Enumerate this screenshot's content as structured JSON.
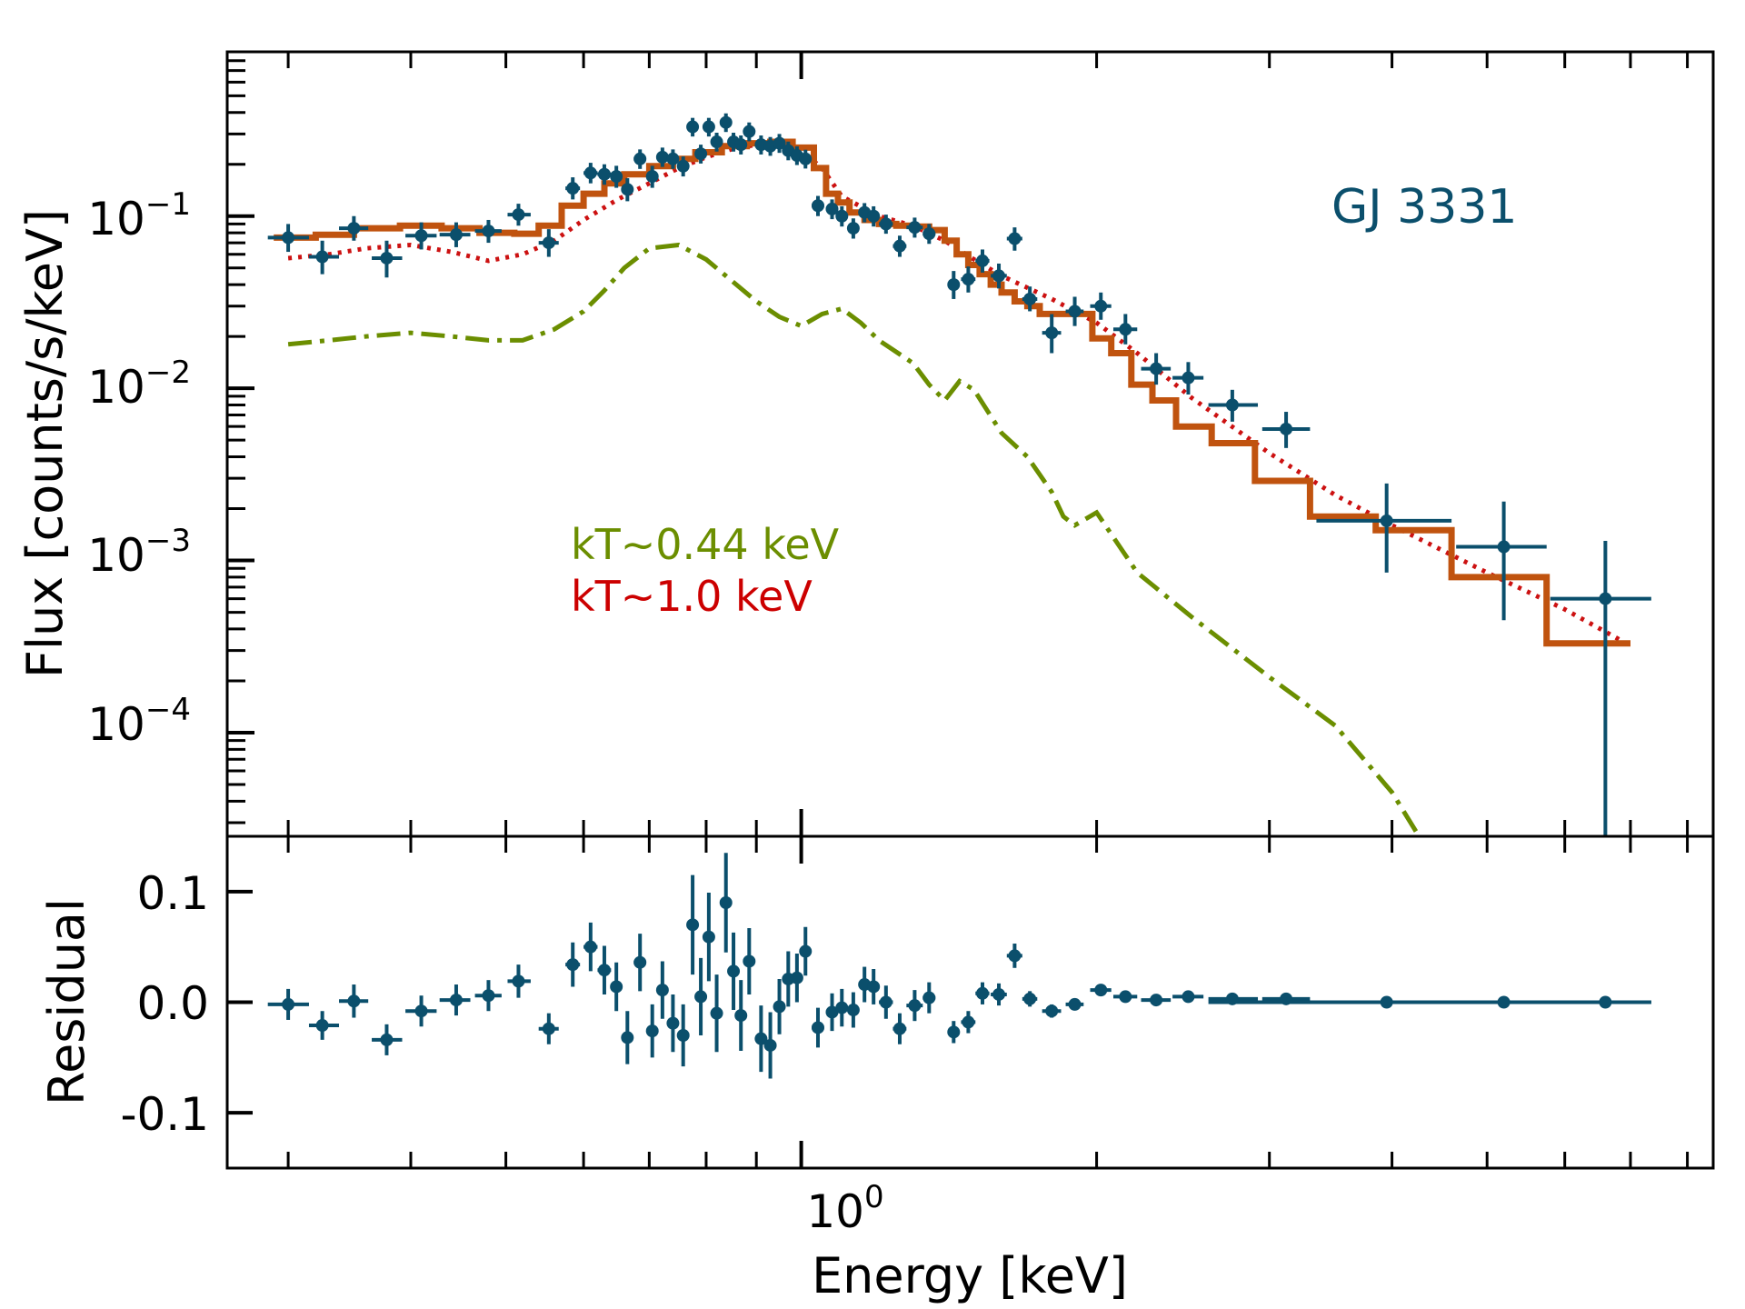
{
  "chart_data": {
    "type": "scatter",
    "panels": {
      "top": {
        "ylabel": "Flux [counts/s/keV]",
        "yscale": "log",
        "ylim": [
          2.5e-05,
          0.9
        ],
        "yticks": [
          {
            "v": 0.1,
            "base": "10",
            "exp": "−1"
          },
          {
            "v": 0.01,
            "base": "10",
            "exp": "−2"
          },
          {
            "v": 0.001,
            "base": "10",
            "exp": "−3"
          },
          {
            "v": 0.0001,
            "base": "10",
            "exp": "−4"
          }
        ]
      },
      "bottom": {
        "ylabel": "Residual",
        "ylim": [
          -0.15,
          0.15
        ],
        "yticks": [
          {
            "v": 0.1,
            "label": "0.1"
          },
          {
            "v": 0.0,
            "label": "0.0"
          },
          {
            "v": -0.1,
            "label": "-0.1"
          }
        ]
      }
    },
    "xlabel": "Energy [keV]",
    "xscale": "log",
    "xlim": [
      0.26,
      8.5
    ],
    "xtick_major": {
      "v": 1.0,
      "base": "10",
      "exp": "0"
    },
    "xtick_minor": [
      0.3,
      0.4,
      0.5,
      0.6,
      0.7,
      0.8,
      0.9,
      2,
      3,
      4,
      5,
      6,
      7,
      8
    ],
    "target_label": "GJ 3331",
    "component_labels": [
      {
        "text": "kT~0.44 keV",
        "color": "#6b8e00"
      },
      {
        "text": "kT~1.0 keV",
        "color": "#cc0000"
      }
    ],
    "colors": {
      "data": "#0b4f6c",
      "total_model": "#c0530f",
      "hot_component": "#cc1111",
      "cool_component": "#6b8e00",
      "axes": "#000000"
    },
    "data_points": [
      {
        "x": 0.3,
        "xlo": 0.286,
        "xhi": 0.315,
        "y": 0.075,
        "ylo": 0.062,
        "yhi": 0.09,
        "r": -0.002,
        "rerr": 0.014
      },
      {
        "x": 0.325,
        "xlo": 0.315,
        "xhi": 0.338,
        "y": 0.058,
        "ylo": 0.046,
        "yhi": 0.072,
        "r": -0.021,
        "rerr": 0.013
      },
      {
        "x": 0.35,
        "xlo": 0.338,
        "xhi": 0.362,
        "y": 0.085,
        "ylo": 0.072,
        "yhi": 0.1,
        "r": 0.001,
        "rerr": 0.015
      },
      {
        "x": 0.378,
        "xlo": 0.365,
        "xhi": 0.392,
        "y": 0.057,
        "ylo": 0.044,
        "yhi": 0.072,
        "r": -0.034,
        "rerr": 0.014
      },
      {
        "x": 0.41,
        "xlo": 0.395,
        "xhi": 0.425,
        "y": 0.077,
        "ylo": 0.064,
        "yhi": 0.092,
        "r": -0.008,
        "rerr": 0.014
      },
      {
        "x": 0.445,
        "xlo": 0.428,
        "xhi": 0.46,
        "y": 0.078,
        "ylo": 0.066,
        "yhi": 0.092,
        "r": 0.002,
        "rerr": 0.014
      },
      {
        "x": 0.48,
        "xlo": 0.465,
        "xhi": 0.495,
        "y": 0.082,
        "ylo": 0.07,
        "yhi": 0.095,
        "r": 0.006,
        "rerr": 0.014
      },
      {
        "x": 0.515,
        "xlo": 0.502,
        "xhi": 0.53,
        "y": 0.102,
        "ylo": 0.088,
        "yhi": 0.118,
        "r": 0.019,
        "rerr": 0.015
      },
      {
        "x": 0.553,
        "xlo": 0.54,
        "xhi": 0.566,
        "y": 0.07,
        "ylo": 0.058,
        "yhi": 0.084,
        "r": -0.024,
        "rerr": 0.014
      },
      {
        "x": 0.585,
        "xlo": 0.575,
        "xhi": 0.595,
        "y": 0.145,
        "ylo": 0.125,
        "yhi": 0.168,
        "r": 0.034,
        "rerr": 0.02
      },
      {
        "x": 0.61,
        "xlo": 0.6,
        "xhi": 0.62,
        "y": 0.178,
        "ylo": 0.155,
        "yhi": 0.204,
        "r": 0.05,
        "rerr": 0.022
      },
      {
        "x": 0.63,
        "xlo": 0.62,
        "xhi": 0.64,
        "y": 0.175,
        "ylo": 0.152,
        "yhi": 0.2,
        "r": 0.029,
        "rerr": 0.022
      },
      {
        "x": 0.648,
        "xlo": 0.64,
        "xhi": 0.656,
        "y": 0.17,
        "ylo": 0.146,
        "yhi": 0.196,
        "r": 0.014,
        "rerr": 0.022
      },
      {
        "x": 0.665,
        "xlo": 0.656,
        "xhi": 0.674,
        "y": 0.143,
        "ylo": 0.122,
        "yhi": 0.166,
        "r": -0.032,
        "rerr": 0.024
      },
      {
        "x": 0.685,
        "xlo": 0.675,
        "xhi": 0.695,
        "y": 0.215,
        "ylo": 0.188,
        "yhi": 0.244,
        "r": 0.036,
        "rerr": 0.026
      },
      {
        "x": 0.705,
        "xlo": 0.695,
        "xhi": 0.715,
        "y": 0.17,
        "ylo": 0.146,
        "yhi": 0.196,
        "r": -0.026,
        "rerr": 0.024
      },
      {
        "x": 0.722,
        "xlo": 0.714,
        "xhi": 0.73,
        "y": 0.22,
        "ylo": 0.193,
        "yhi": 0.25,
        "r": 0.011,
        "rerr": 0.026
      },
      {
        "x": 0.74,
        "xlo": 0.732,
        "xhi": 0.748,
        "y": 0.215,
        "ylo": 0.188,
        "yhi": 0.244,
        "r": -0.019,
        "rerr": 0.026
      },
      {
        "x": 0.758,
        "xlo": 0.75,
        "xhi": 0.766,
        "y": 0.195,
        "ylo": 0.17,
        "yhi": 0.222,
        "r": -0.03,
        "rerr": 0.028
      },
      {
        "x": 0.775,
        "xlo": 0.767,
        "xhi": 0.783,
        "y": 0.33,
        "ylo": 0.29,
        "yhi": 0.372,
        "r": 0.07,
        "rerr": 0.045
      },
      {
        "x": 0.79,
        "xlo": 0.782,
        "xhi": 0.798,
        "y": 0.23,
        "ylo": 0.202,
        "yhi": 0.26,
        "r": 0.005,
        "rerr": 0.035
      },
      {
        "x": 0.805,
        "xlo": 0.797,
        "xhi": 0.813,
        "y": 0.33,
        "ylo": 0.29,
        "yhi": 0.372,
        "r": 0.059,
        "rerr": 0.04
      },
      {
        "x": 0.82,
        "xlo": 0.812,
        "xhi": 0.828,
        "y": 0.27,
        "ylo": 0.237,
        "yhi": 0.305,
        "r": -0.01,
        "rerr": 0.035
      },
      {
        "x": 0.838,
        "xlo": 0.83,
        "xhi": 0.846,
        "y": 0.35,
        "ylo": 0.308,
        "yhi": 0.395,
        "r": 0.09,
        "rerr": 0.045
      },
      {
        "x": 0.853,
        "xlo": 0.845,
        "xhi": 0.861,
        "y": 0.27,
        "ylo": 0.237,
        "yhi": 0.305,
        "r": 0.028,
        "rerr": 0.035
      },
      {
        "x": 0.868,
        "xlo": 0.86,
        "xhi": 0.876,
        "y": 0.26,
        "ylo": 0.228,
        "yhi": 0.294,
        "r": -0.012,
        "rerr": 0.032
      },
      {
        "x": 0.885,
        "xlo": 0.877,
        "xhi": 0.893,
        "y": 0.31,
        "ylo": 0.272,
        "yhi": 0.35,
        "r": 0.037,
        "rerr": 0.03
      },
      {
        "x": 0.91,
        "xlo": 0.9,
        "xhi": 0.92,
        "y": 0.26,
        "ylo": 0.228,
        "yhi": 0.294,
        "r": -0.033,
        "rerr": 0.03
      },
      {
        "x": 0.93,
        "xlo": 0.921,
        "xhi": 0.939,
        "y": 0.255,
        "ylo": 0.224,
        "yhi": 0.288,
        "r": -0.039,
        "rerr": 0.03
      },
      {
        "x": 0.95,
        "xlo": 0.94,
        "xhi": 0.96,
        "y": 0.265,
        "ylo": 0.233,
        "yhi": 0.3,
        "r": -0.004,
        "rerr": 0.025
      },
      {
        "x": 0.97,
        "xlo": 0.96,
        "xhi": 0.98,
        "y": 0.24,
        "ylo": 0.211,
        "yhi": 0.271,
        "r": 0.021,
        "rerr": 0.025
      },
      {
        "x": 0.99,
        "xlo": 0.98,
        "xhi": 1.0,
        "y": 0.225,
        "ylo": 0.198,
        "yhi": 0.254,
        "r": 0.022,
        "rerr": 0.022
      },
      {
        "x": 1.01,
        "xlo": 1.0,
        "xhi": 1.02,
        "y": 0.215,
        "ylo": 0.189,
        "yhi": 0.243,
        "r": 0.046,
        "rerr": 0.022
      },
      {
        "x": 1.04,
        "xlo": 1.025,
        "xhi": 1.055,
        "y": 0.115,
        "ylo": 0.1,
        "yhi": 0.131,
        "r": -0.023,
        "rerr": 0.018
      },
      {
        "x": 1.075,
        "xlo": 1.06,
        "xhi": 1.09,
        "y": 0.11,
        "ylo": 0.096,
        "yhi": 0.125,
        "r": -0.009,
        "rerr": 0.017
      },
      {
        "x": 1.1,
        "xlo": 1.085,
        "xhi": 1.115,
        "y": 0.1,
        "ylo": 0.087,
        "yhi": 0.114,
        "r": -0.005,
        "rerr": 0.017
      },
      {
        "x": 1.13,
        "xlo": 1.115,
        "xhi": 1.145,
        "y": 0.085,
        "ylo": 0.074,
        "yhi": 0.097,
        "r": -0.007,
        "rerr": 0.016
      },
      {
        "x": 1.16,
        "xlo": 1.145,
        "xhi": 1.175,
        "y": 0.105,
        "ylo": 0.092,
        "yhi": 0.119,
        "r": 0.016,
        "rerr": 0.016
      },
      {
        "x": 1.185,
        "xlo": 1.17,
        "xhi": 1.2,
        "y": 0.1,
        "ylo": 0.087,
        "yhi": 0.114,
        "r": 0.014,
        "rerr": 0.016
      },
      {
        "x": 1.22,
        "xlo": 1.2,
        "xhi": 1.24,
        "y": 0.09,
        "ylo": 0.079,
        "yhi": 0.102,
        "r": 0.0,
        "rerr": 0.015
      },
      {
        "x": 1.26,
        "xlo": 1.24,
        "xhi": 1.28,
        "y": 0.067,
        "ylo": 0.058,
        "yhi": 0.077,
        "r": -0.024,
        "rerr": 0.014
      },
      {
        "x": 1.305,
        "xlo": 1.28,
        "xhi": 1.33,
        "y": 0.086,
        "ylo": 0.075,
        "yhi": 0.098,
        "r": -0.003,
        "rerr": 0.014
      },
      {
        "x": 1.35,
        "xlo": 1.33,
        "xhi": 1.37,
        "y": 0.079,
        "ylo": 0.069,
        "yhi": 0.09,
        "r": 0.004,
        "rerr": 0.014
      },
      {
        "x": 1.43,
        "xlo": 1.41,
        "xhi": 1.45,
        "y": 0.04,
        "ylo": 0.033,
        "yhi": 0.048,
        "r": -0.027,
        "rerr": 0.01
      },
      {
        "x": 1.48,
        "xlo": 1.455,
        "xhi": 1.505,
        "y": 0.043,
        "ylo": 0.036,
        "yhi": 0.051,
        "r": -0.018,
        "rerr": 0.01
      },
      {
        "x": 1.53,
        "xlo": 1.505,
        "xhi": 1.555,
        "y": 0.055,
        "ylo": 0.047,
        "yhi": 0.064,
        "r": 0.008,
        "rerr": 0.01
      },
      {
        "x": 1.59,
        "xlo": 1.56,
        "xhi": 1.62,
        "y": 0.045,
        "ylo": 0.038,
        "yhi": 0.053,
        "r": 0.007,
        "rerr": 0.01
      },
      {
        "x": 1.65,
        "xlo": 1.62,
        "xhi": 1.68,
        "y": 0.074,
        "ylo": 0.063,
        "yhi": 0.086,
        "r": 0.042,
        "rerr": 0.011
      },
      {
        "x": 1.71,
        "xlo": 1.68,
        "xhi": 1.74,
        "y": 0.033,
        "ylo": 0.028,
        "yhi": 0.039,
        "r": 0.003,
        "rerr": 0.007
      },
      {
        "x": 1.8,
        "xlo": 1.76,
        "xhi": 1.84,
        "y": 0.021,
        "ylo": 0.016,
        "yhi": 0.027,
        "r": -0.008,
        "rerr": 0.006
      },
      {
        "x": 1.9,
        "xlo": 1.86,
        "xhi": 1.94,
        "y": 0.028,
        "ylo": 0.023,
        "yhi": 0.034,
        "r": -0.002,
        "rerr": 0.005
      },
      {
        "x": 2.02,
        "xlo": 1.97,
        "xhi": 2.07,
        "y": 0.03,
        "ylo": 0.025,
        "yhi": 0.036,
        "r": 0.011,
        "rerr": 0.005
      },
      {
        "x": 2.14,
        "xlo": 2.08,
        "xhi": 2.2,
        "y": 0.022,
        "ylo": 0.018,
        "yhi": 0.027,
        "r": 0.005,
        "rerr": 0.004
      },
      {
        "x": 2.3,
        "xlo": 2.22,
        "xhi": 2.38,
        "y": 0.013,
        "ylo": 0.0105,
        "yhi": 0.016,
        "r": 0.002,
        "rerr": 0.003
      },
      {
        "x": 2.48,
        "xlo": 2.39,
        "xhi": 2.57,
        "y": 0.0115,
        "ylo": 0.0092,
        "yhi": 0.0142,
        "r": 0.005,
        "rerr": 0.003
      },
      {
        "x": 2.75,
        "xlo": 2.6,
        "xhi": 2.92,
        "y": 0.008,
        "ylo": 0.0064,
        "yhi": 0.0098,
        "r": 0.003,
        "rerr": 0.002
      },
      {
        "x": 3.12,
        "xlo": 2.95,
        "xhi": 3.3,
        "y": 0.0058,
        "ylo": 0.0045,
        "yhi": 0.0073,
        "r": 0.003,
        "rerr": 0.002
      },
      {
        "x": 3.95,
        "xlo": 3.35,
        "xhi": 4.6,
        "y": 0.0017,
        "ylo": 0.00085,
        "yhi": 0.0028,
        "r": 0.0,
        "rerr": 0.0015
      },
      {
        "x": 5.2,
        "xlo": 4.65,
        "xhi": 5.75,
        "y": 0.0012,
        "ylo": 0.00045,
        "yhi": 0.0022,
        "r": 0.0,
        "rerr": 0.0012
      },
      {
        "x": 6.6,
        "xlo": 5.8,
        "xhi": 7.35,
        "y": 0.0006,
        "ylo": 2.5e-05,
        "yhi": 0.0013,
        "r": 0.0,
        "rerr": 0.0012
      }
    ],
    "total_model": {
      "bin_edges": [
        0.29,
        0.32,
        0.35,
        0.39,
        0.43,
        0.47,
        0.51,
        0.54,
        0.57,
        0.6,
        0.63,
        0.66,
        0.7,
        0.74,
        0.78,
        0.83,
        0.88,
        0.93,
        0.98,
        1.03,
        1.06,
        1.09,
        1.12,
        1.16,
        1.2,
        1.25,
        1.3,
        1.35,
        1.4,
        1.44,
        1.48,
        1.52,
        1.56,
        1.6,
        1.65,
        1.7,
        1.75,
        1.82,
        1.9,
        1.98,
        2.07,
        2.17,
        2.28,
        2.41,
        2.62,
        2.9,
        3.3,
        3.85,
        4.6,
        5.75,
        7.0
      ],
      "values": [
        0.075,
        0.078,
        0.085,
        0.088,
        0.085,
        0.08,
        0.079,
        0.088,
        0.115,
        0.135,
        0.155,
        0.175,
        0.195,
        0.215,
        0.235,
        0.255,
        0.265,
        0.27,
        0.25,
        0.19,
        0.135,
        0.12,
        0.105,
        0.095,
        0.09,
        0.088,
        0.087,
        0.083,
        0.072,
        0.06,
        0.052,
        0.046,
        0.04,
        0.036,
        0.032,
        0.03,
        0.027,
        0.027,
        0.027,
        0.0195,
        0.016,
        0.0105,
        0.0085,
        0.006,
        0.0048,
        0.0029,
        0.0018,
        0.0015,
        0.0008,
        0.00033
      ]
    },
    "hot_component": {
      "x": [
        0.3,
        0.33,
        0.36,
        0.4,
        0.44,
        0.48,
        0.52,
        0.56,
        0.6,
        0.65,
        0.7,
        0.75,
        0.8,
        0.85,
        0.9,
        0.95,
        1.0,
        1.05,
        1.1,
        1.2,
        1.3,
        1.4,
        1.5,
        1.6,
        1.8,
        2.0,
        2.2,
        2.5,
        3.0,
        3.5,
        4.0,
        5.0,
        6.0,
        7.0
      ],
      "y": [
        0.057,
        0.06,
        0.065,
        0.068,
        0.062,
        0.055,
        0.06,
        0.072,
        0.095,
        0.125,
        0.155,
        0.19,
        0.22,
        0.245,
        0.26,
        0.26,
        0.24,
        0.19,
        0.13,
        0.1,
        0.088,
        0.072,
        0.056,
        0.045,
        0.033,
        0.024,
        0.016,
        0.0088,
        0.0042,
        0.0024,
        0.0016,
        0.00085,
        0.00052,
        0.00032
      ]
    },
    "cool_component": {
      "x": [
        0.3,
        0.33,
        0.36,
        0.4,
        0.44,
        0.48,
        0.52,
        0.56,
        0.6,
        0.63,
        0.66,
        0.7,
        0.75,
        0.8,
        0.85,
        0.9,
        0.95,
        1.0,
        1.05,
        1.1,
        1.15,
        1.2,
        1.3,
        1.35,
        1.4,
        1.45,
        1.5,
        1.6,
        1.7,
        1.8,
        1.85,
        1.9,
        2.0,
        2.2,
        2.5,
        3.0,
        3.5,
        4.0,
        4.3
      ],
      "y": [
        0.018,
        0.019,
        0.02,
        0.021,
        0.02,
        0.019,
        0.019,
        0.022,
        0.028,
        0.037,
        0.05,
        0.065,
        0.068,
        0.056,
        0.042,
        0.032,
        0.026,
        0.023,
        0.027,
        0.029,
        0.024,
        0.019,
        0.014,
        0.0105,
        0.0085,
        0.011,
        0.0098,
        0.0055,
        0.004,
        0.0025,
        0.0018,
        0.0016,
        0.0019,
        0.00085,
        0.00047,
        0.00021,
        0.00011,
        4.5e-05,
        2.3e-05
      ]
    }
  }
}
